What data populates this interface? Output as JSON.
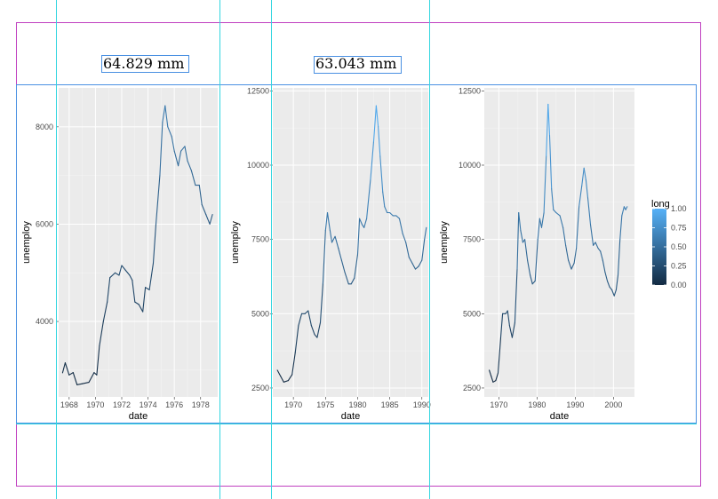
{
  "annotations": {
    "width_1": "64.829 mm",
    "width_2": "63.043 mm"
  },
  "colors": {
    "page_frame": "#c040c0",
    "guide": "#33d6e0",
    "panel_frame": "#4a90e2",
    "plot_bg": "#ebebeb",
    "line_low": "#132b43",
    "line_high": "#56b1f7"
  },
  "legend": {
    "title": "long",
    "ticks": [
      "1.00",
      "0.75",
      "0.50",
      "0.25",
      "0.00"
    ]
  },
  "chart_data": [
    {
      "type": "line",
      "xlabel": "date",
      "ylabel": "unemploy",
      "xlim": [
        1967.2,
        1979.3
      ],
      "ylim": [
        2450,
        8800
      ],
      "x_ticks": [
        "1968",
        "1970",
        "1972",
        "1974",
        "1976",
        "1978"
      ],
      "y_ticks": [
        "4000",
        "6000",
        "8000"
      ],
      "x_tick_values": [
        1968,
        1970,
        1972,
        1974,
        1976,
        1978
      ],
      "y_tick_values": [
        4000,
        6000,
        8000
      ],
      "grid": true,
      "series": [
        {
          "points": [
            [
              1967.5,
              2944
            ],
            [
              1967.7,
              3150
            ],
            [
              1968.0,
              2900
            ],
            [
              1968.3,
              2950
            ],
            [
              1968.6,
              2700
            ],
            [
              1969.0,
              2720
            ],
            [
              1969.5,
              2750
            ],
            [
              1969.9,
              2950
            ],
            [
              1970.1,
              2900
            ],
            [
              1970.3,
              3500
            ],
            [
              1970.6,
              4000
            ],
            [
              1970.9,
              4400
            ],
            [
              1971.1,
              4900
            ],
            [
              1971.5,
              5000
            ],
            [
              1971.8,
              4950
            ],
            [
              1972.0,
              5150
            ],
            [
              1972.3,
              5050
            ],
            [
              1972.6,
              4950
            ],
            [
              1972.8,
              4850
            ],
            [
              1973.0,
              4400
            ],
            [
              1973.3,
              4350
            ],
            [
              1973.6,
              4200
            ],
            [
              1973.8,
              4700
            ],
            [
              1974.1,
              4650
            ],
            [
              1974.4,
              5200
            ],
            [
              1974.6,
              6000
            ],
            [
              1974.9,
              7000
            ],
            [
              1975.1,
              8100
            ],
            [
              1975.3,
              8433
            ],
            [
              1975.5,
              8000
            ],
            [
              1975.8,
              7800
            ],
            [
              1976.0,
              7500
            ],
            [
              1976.3,
              7200
            ],
            [
              1976.5,
              7500
            ],
            [
              1976.8,
              7600
            ],
            [
              1977.0,
              7300
            ],
            [
              1977.3,
              7100
            ],
            [
              1977.6,
              6800
            ],
            [
              1977.9,
              6800
            ],
            [
              1978.1,
              6400
            ],
            [
              1978.4,
              6200
            ],
            [
              1978.7,
              6000
            ],
            [
              1978.9,
              6200
            ]
          ]
        }
      ]
    },
    {
      "type": "line",
      "xlabel": "date",
      "ylabel": "unemploy",
      "xlim": [
        1966.8,
        1991.0
      ],
      "ylim": [
        2200,
        12600
      ],
      "x_ticks": [
        "1970",
        "1975",
        "1980",
        "1985",
        "1990"
      ],
      "y_ticks": [
        "2500",
        "5000",
        "7500",
        "10000",
        "12500"
      ],
      "x_tick_values": [
        1970,
        1975,
        1980,
        1985,
        1990
      ],
      "y_tick_values": [
        2500,
        5000,
        7500,
        10000,
        12500
      ],
      "grid": true,
      "series": [
        {
          "points": [
            [
              1967.5,
              3100
            ],
            [
              1968.0,
              2900
            ],
            [
              1968.5,
              2700
            ],
            [
              1969.2,
              2750
            ],
            [
              1969.8,
              2950
            ],
            [
              1970.3,
              3700
            ],
            [
              1970.8,
              4600
            ],
            [
              1971.3,
              5000
            ],
            [
              1971.8,
              5000
            ],
            [
              1972.3,
              5100
            ],
            [
              1972.8,
              4600
            ],
            [
              1973.3,
              4300
            ],
            [
              1973.7,
              4200
            ],
            [
              1974.2,
              4700
            ],
            [
              1974.6,
              6000
            ],
            [
              1975.0,
              7800
            ],
            [
              1975.3,
              8400
            ],
            [
              1975.7,
              7800
            ],
            [
              1976.0,
              7400
            ],
            [
              1976.5,
              7600
            ],
            [
              1977.0,
              7200
            ],
            [
              1977.5,
              6800
            ],
            [
              1978.0,
              6400
            ],
            [
              1978.6,
              6000
            ],
            [
              1979.0,
              6000
            ],
            [
              1979.5,
              6200
            ],
            [
              1980.0,
              7000
            ],
            [
              1980.3,
              8200
            ],
            [
              1980.7,
              8000
            ],
            [
              1981.0,
              7900
            ],
            [
              1981.4,
              8200
            ],
            [
              1982.0,
              9500
            ],
            [
              1982.5,
              10800
            ],
            [
              1982.9,
              12000
            ],
            [
              1983.2,
              11300
            ],
            [
              1983.5,
              10300
            ],
            [
              1983.9,
              9100
            ],
            [
              1984.2,
              8600
            ],
            [
              1984.6,
              8400
            ],
            [
              1985.0,
              8400
            ],
            [
              1985.5,
              8300
            ],
            [
              1986.0,
              8300
            ],
            [
              1986.5,
              8200
            ],
            [
              1987.0,
              7700
            ],
            [
              1987.5,
              7400
            ],
            [
              1988.0,
              6900
            ],
            [
              1988.5,
              6700
            ],
            [
              1989.0,
              6500
            ],
            [
              1989.5,
              6600
            ],
            [
              1990.0,
              6800
            ],
            [
              1990.4,
              7500
            ],
            [
              1990.7,
              7900
            ]
          ]
        }
      ]
    },
    {
      "type": "line",
      "xlabel": "date",
      "ylabel": "unemploy",
      "xlim": [
        1966.2,
        2005.5
      ],
      "ylim": [
        2200,
        12600
      ],
      "x_ticks": [
        "1970",
        "1980",
        "1990",
        "2000"
      ],
      "y_ticks": [
        "2500",
        "5000",
        "7500",
        "10000",
        "12500"
      ],
      "x_tick_values": [
        1970,
        1980,
        1990,
        2000
      ],
      "y_tick_values": [
        2500,
        5000,
        7500,
        10000,
        12500
      ],
      "grid": true,
      "series": [
        {
          "points": [
            [
              1967.5,
              3100
            ],
            [
              1968.0,
              2900
            ],
            [
              1968.5,
              2700
            ],
            [
              1969.2,
              2750
            ],
            [
              1969.8,
              3000
            ],
            [
              1970.5,
              4200
            ],
            [
              1971.0,
              5000
            ],
            [
              1971.8,
              5000
            ],
            [
              1972.3,
              5100
            ],
            [
              1972.8,
              4600
            ],
            [
              1973.5,
              4200
            ],
            [
              1974.2,
              4700
            ],
            [
              1974.8,
              6500
            ],
            [
              1975.2,
              8400
            ],
            [
              1975.7,
              7800
            ],
            [
              1976.3,
              7400
            ],
            [
              1976.8,
              7500
            ],
            [
              1977.5,
              6800
            ],
            [
              1978.2,
              6300
            ],
            [
              1978.8,
              6000
            ],
            [
              1979.5,
              6100
            ],
            [
              1980.2,
              7500
            ],
            [
              1980.7,
              8200
            ],
            [
              1981.2,
              7900
            ],
            [
              1981.8,
              8400
            ],
            [
              1982.4,
              10300
            ],
            [
              1982.9,
              12050
            ],
            [
              1983.3,
              11000
            ],
            [
              1983.8,
              9200
            ],
            [
              1984.3,
              8500
            ],
            [
              1985.0,
              8400
            ],
            [
              1986.0,
              8300
            ],
            [
              1986.8,
              7900
            ],
            [
              1987.5,
              7300
            ],
            [
              1988.2,
              6800
            ],
            [
              1989.0,
              6500
            ],
            [
              1989.7,
              6700
            ],
            [
              1990.3,
              7200
            ],
            [
              1991.0,
              8600
            ],
            [
              1991.7,
              9300
            ],
            [
              1992.3,
              9900
            ],
            [
              1992.8,
              9500
            ],
            [
              1993.3,
              8900
            ],
            [
              1994.0,
              8000
            ],
            [
              1994.7,
              7300
            ],
            [
              1995.3,
              7400
            ],
            [
              1996.0,
              7200
            ],
            [
              1996.6,
              7100
            ],
            [
              1997.2,
              6800
            ],
            [
              1997.8,
              6400
            ],
            [
              1998.4,
              6100
            ],
            [
              1999.0,
              5900
            ],
            [
              1999.6,
              5800
            ],
            [
              2000.2,
              5600
            ],
            [
              2000.7,
              5800
            ],
            [
              2001.2,
              6300
            ],
            [
              2001.7,
              7500
            ],
            [
              2002.2,
              8300
            ],
            [
              2002.8,
              8600
            ],
            [
              2003.2,
              8500
            ],
            [
              2003.6,
              8600
            ]
          ]
        }
      ]
    }
  ]
}
